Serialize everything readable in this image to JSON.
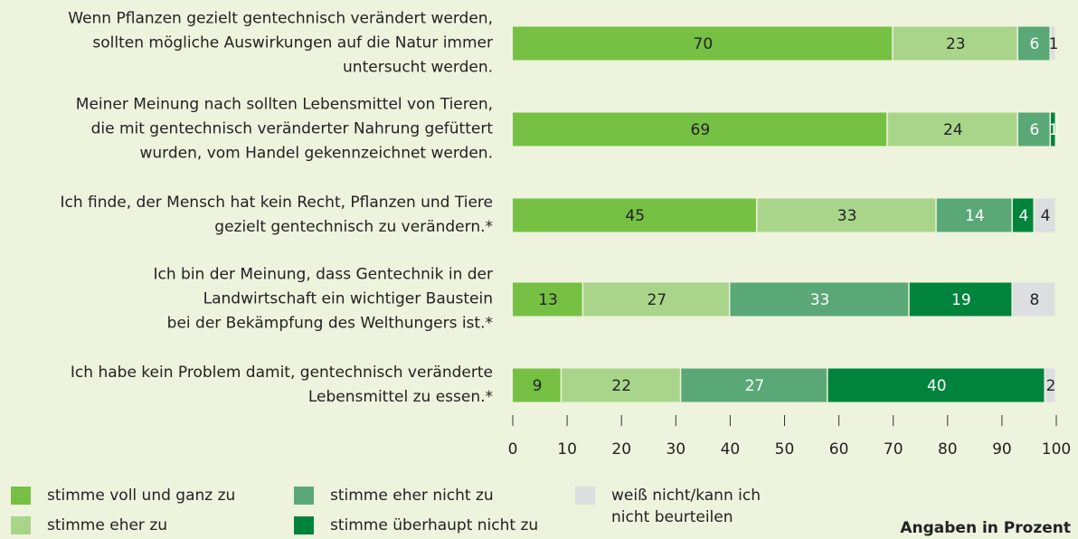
{
  "chart_data": {
    "type": "stacked-barh",
    "categories": [
      "Wenn Pflanzen gezielt gentechnisch verändert werden,\nsollten mögliche Auswirkungen auf die Natur immer\nuntersucht werden.",
      "Meiner Meinung nach sollten Lebensmittel von Tieren,\ndie mit gentechnisch veränderter Nahrung gefüttert\nwurden, vom Handel gekennzeichnet werden.",
      "Ich finde, der Mensch hat kein Recht, Pflanzen und Tiere\ngezielt gentechnisch zu verändern.*",
      "Ich bin der Meinung, dass Gentechnik in der\nLandwirtschaft ein wichtiger Baustein\nbei der Bekämpfung des Welthungers ist.*",
      "Ich habe kein Problem damit, gentechnisch veränderte\nLebensmittel zu essen.*"
    ],
    "series": [
      {
        "name": "stimme voll und ganz zu",
        "color": "#76c043",
        "values": [
          70,
          69,
          45,
          13,
          9
        ]
      },
      {
        "name": "stimme eher zu",
        "color": "#a9d58b",
        "values": [
          23,
          24,
          33,
          27,
          22
        ]
      },
      {
        "name": "stimme eher nicht zu",
        "color": "#5aa878",
        "values": [
          6,
          6,
          14,
          33,
          27
        ]
      },
      {
        "name": "stimme überhaupt nicht zu",
        "color": "#00843d",
        "values": [
          null,
          1,
          4,
          19,
          40
        ]
      },
      {
        "name": "weiß nicht/kann ich\nnicht beurteilen",
        "color": "#dcdedf",
        "values": [
          1,
          null,
          4,
          8,
          2
        ]
      }
    ],
    "xlim": [
      0,
      100
    ],
    "xticks": [
      0,
      10,
      20,
      30,
      40,
      50,
      60,
      70,
      80,
      90,
      100
    ],
    "note": "Angaben in Prozent"
  }
}
